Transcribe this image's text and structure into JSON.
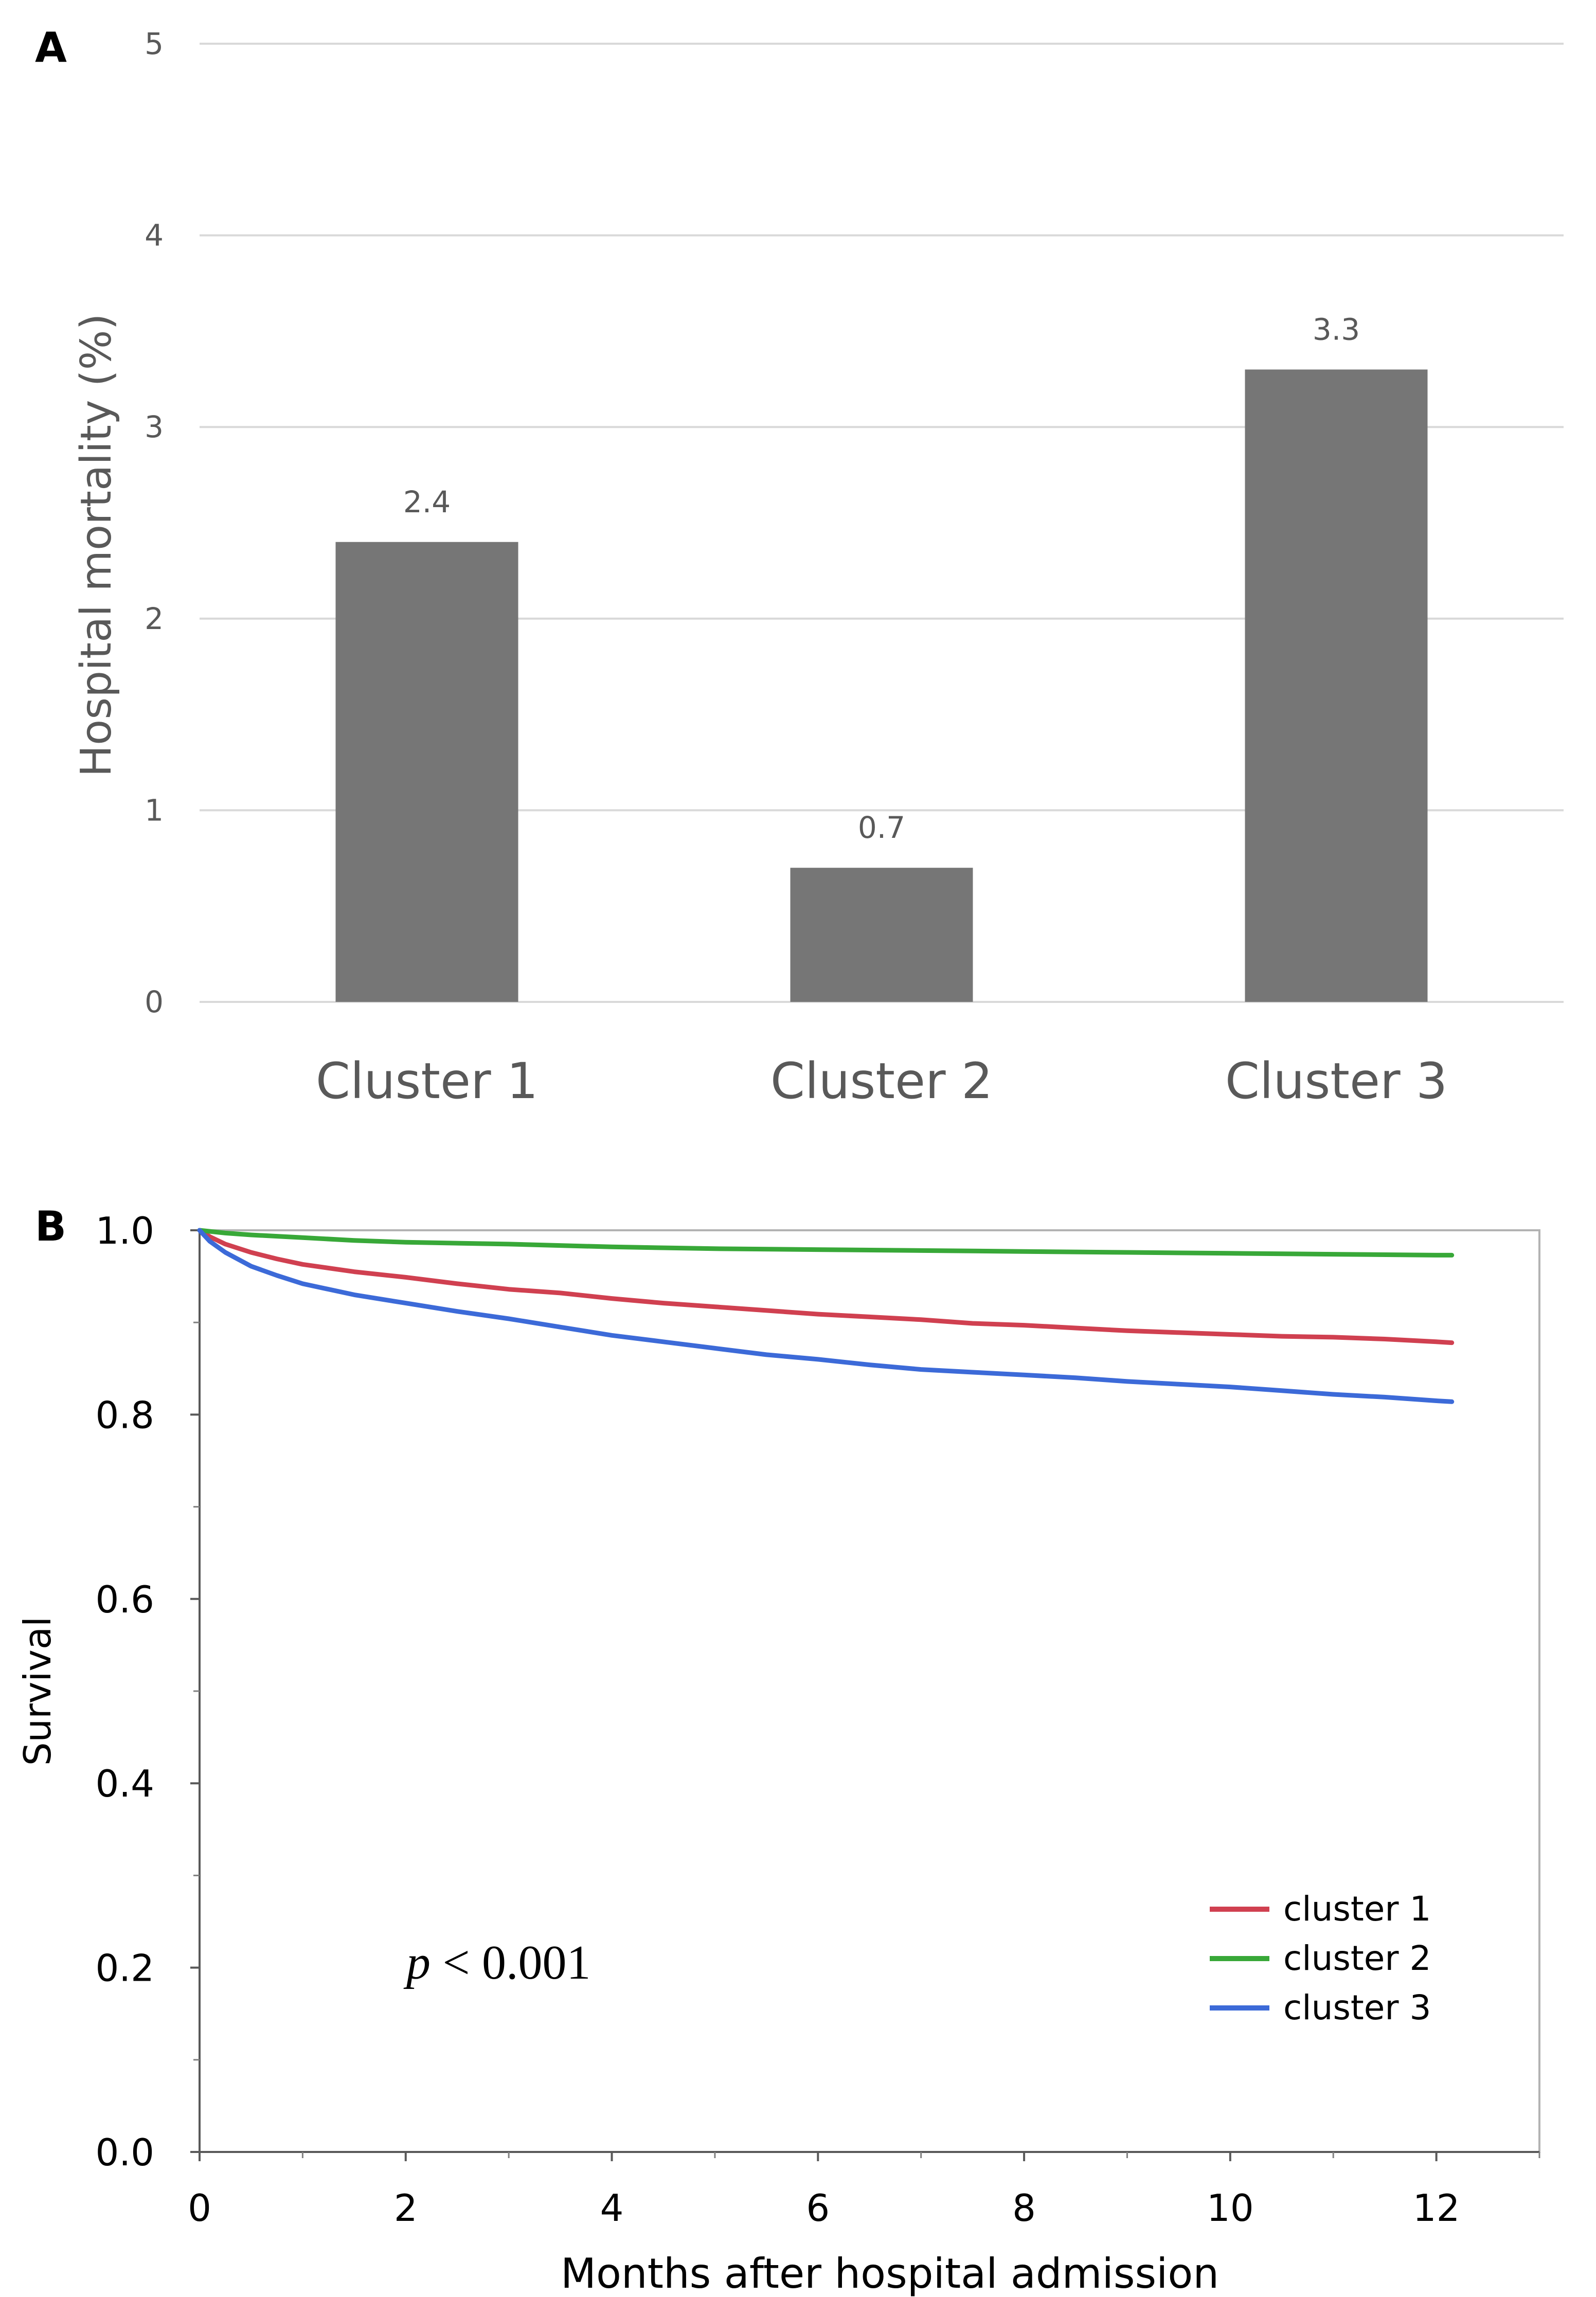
{
  "chart_data": [
    {
      "panel_label": "A",
      "type": "bar",
      "title": "",
      "xlabel": "",
      "ylabel": "Hospital mortality (%)",
      "categories": [
        "Cluster 1",
        "Cluster 2",
        "Cluster 3"
      ],
      "values": [
        2.4,
        0.7,
        3.3
      ],
      "data_labels": [
        "2.4",
        "0.7",
        "3.3"
      ],
      "ylim": [
        0,
        5
      ],
      "yticks": [
        0,
        1,
        2,
        3,
        4,
        5
      ],
      "ytick_labels": [
        "0",
        "1",
        "2",
        "3",
        "4",
        "5"
      ],
      "grid": true,
      "bar_color": "#767676",
      "grid_color": "#d9d9d9",
      "text_color": "#595959"
    },
    {
      "panel_label": "B",
      "type": "line",
      "title": "",
      "xlabel": "Months after hospital admission",
      "ylabel": "Survival",
      "xlim": [
        0,
        13
      ],
      "ylim": [
        0,
        1.0
      ],
      "xticks": [
        0,
        2,
        4,
        6,
        8,
        10,
        12
      ],
      "xtick_labels": [
        "0",
        "2",
        "4",
        "6",
        "8",
        "10",
        "12"
      ],
      "xminor": [
        1,
        3,
        5,
        7,
        9,
        11,
        13
      ],
      "yticks": [
        0,
        0.2,
        0.4,
        0.6,
        0.8,
        1.0
      ],
      "ytick_labels": [
        "0.0",
        "0.2",
        "0.4",
        "0.6",
        "0.8",
        "1.0"
      ],
      "yminor": [
        0.1,
        0.3,
        0.5,
        0.7,
        0.9
      ],
      "grid": false,
      "legend_position": "bottom-right",
      "annotation": {
        "italic": "p",
        "text": " < 0.001"
      },
      "series": [
        {
          "name": "cluster 1",
          "color": "#d04050",
          "x": [
            0,
            0.1,
            0.25,
            0.5,
            0.75,
            1,
            1.5,
            2,
            2.5,
            3,
            3.5,
            4,
            4.5,
            5,
            5.5,
            6,
            6.5,
            7,
            7.5,
            8,
            8.5,
            9,
            9.5,
            10,
            10.5,
            11,
            11.5,
            12,
            12.15
          ],
          "y": [
            1.0,
            0.993,
            0.985,
            0.976,
            0.969,
            0.963,
            0.955,
            0.949,
            0.942,
            0.936,
            0.932,
            0.926,
            0.921,
            0.917,
            0.913,
            0.909,
            0.906,
            0.903,
            0.899,
            0.897,
            0.894,
            0.891,
            0.889,
            0.887,
            0.885,
            0.884,
            0.882,
            0.879,
            0.878
          ]
        },
        {
          "name": "cluster 2",
          "color": "#38a838",
          "x": [
            0,
            0.25,
            0.5,
            1,
            1.5,
            2,
            3,
            4,
            5,
            6,
            7,
            8,
            9,
            10,
            11,
            12,
            12.15
          ],
          "y": [
            1.0,
            0.997,
            0.995,
            0.992,
            0.989,
            0.987,
            0.985,
            0.982,
            0.98,
            0.979,
            0.978,
            0.977,
            0.976,
            0.975,
            0.974,
            0.973,
            0.973
          ]
        },
        {
          "name": "cluster 3",
          "color": "#3c6ad8",
          "x": [
            0,
            0.1,
            0.25,
            0.5,
            0.75,
            1,
            1.5,
            2,
            2.5,
            3,
            3.5,
            4,
            4.5,
            5,
            5.5,
            6,
            6.5,
            7,
            7.5,
            8,
            8.5,
            9,
            9.5,
            10,
            10.5,
            11,
            11.5,
            12,
            12.15
          ],
          "y": [
            1.0,
            0.988,
            0.976,
            0.961,
            0.951,
            0.942,
            0.93,
            0.921,
            0.912,
            0.904,
            0.895,
            0.886,
            0.879,
            0.872,
            0.865,
            0.86,
            0.854,
            0.849,
            0.846,
            0.843,
            0.84,
            0.836,
            0.833,
            0.83,
            0.826,
            0.822,
            0.819,
            0.815,
            0.814
          ]
        }
      ]
    }
  ]
}
